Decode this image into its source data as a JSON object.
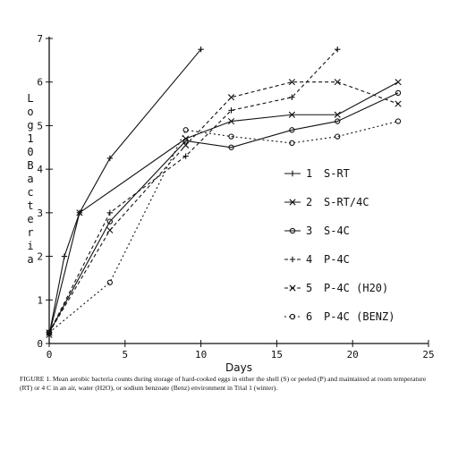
{
  "chart_data": {
    "type": "line",
    "xlabel": "Days",
    "ylabel": "Log 10 Bacteria",
    "xlim": [
      0,
      25
    ],
    "ylim": [
      0,
      7
    ],
    "xticks": [
      0,
      5,
      10,
      15,
      20,
      25
    ],
    "yticks": [
      0,
      1,
      2,
      3,
      4,
      5,
      6,
      7
    ],
    "grid": false,
    "legend_position": "right",
    "series": [
      {
        "name": "S-RT",
        "number": "1",
        "marker": "+",
        "style": "solid",
        "x": [
          0,
          1,
          2,
          4,
          10
        ],
        "y": [
          0.2,
          2.0,
          3.0,
          4.25,
          6.75
        ]
      },
      {
        "name": "S-RT/4C",
        "number": "2",
        "marker": "x",
        "style": "solid",
        "x": [
          0,
          2,
          9,
          12,
          16,
          19,
          23
        ],
        "y": [
          0.2,
          3.0,
          4.7,
          5.1,
          5.25,
          5.25,
          6.0
        ]
      },
      {
        "name": "S-4C",
        "number": "3",
        "marker": "o",
        "style": "solid",
        "x": [
          0,
          4,
          9,
          12,
          16,
          19,
          23
        ],
        "y": [
          0.25,
          2.8,
          4.65,
          4.5,
          4.9,
          5.1,
          5.75
        ]
      },
      {
        "name": "P-4C",
        "number": "4",
        "marker": "+",
        "style": "dashed",
        "x": [
          0,
          4,
          9,
          12,
          16,
          19
        ],
        "y": [
          0.25,
          3.0,
          4.3,
          5.35,
          5.65,
          6.75
        ]
      },
      {
        "name": "P-4C (H20)",
        "number": "5",
        "marker": "x",
        "style": "dashed",
        "x": [
          0,
          4,
          9,
          12,
          16,
          19,
          23
        ],
        "y": [
          0.25,
          2.6,
          4.55,
          5.65,
          6.0,
          6.0,
          5.5
        ]
      },
      {
        "name": "P-4C (BENZ)",
        "number": "6",
        "marker": "o",
        "style": "dotted",
        "x": [
          0,
          4,
          9,
          12,
          16,
          19,
          23
        ],
        "y": [
          0.25,
          1.4,
          4.9,
          4.75,
          4.6,
          4.75,
          5.1
        ]
      }
    ]
  },
  "caption": "FIGURE 1. Mean aerobic bacteria counts during storage of hard-cooked eggs in either the shell (S) or peeled (P) and maintained at room temperature (RT) or 4 C in an air, water (H2O), or sodium benzoate (Benz) environment in Trial 1 (winter)."
}
